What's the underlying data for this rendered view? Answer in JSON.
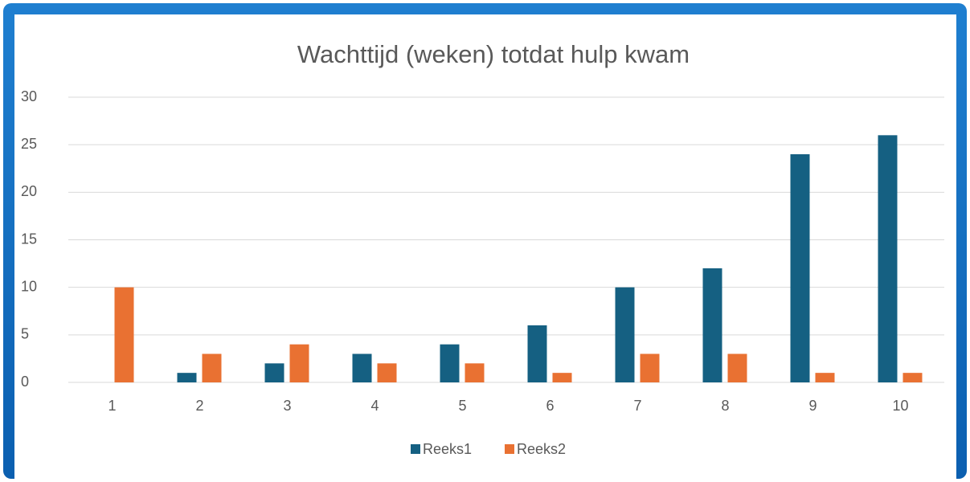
{
  "chart_data": {
    "type": "bar",
    "title": "Wachttijd (weken) totdat hulp kwam",
    "categories": [
      "1",
      "2",
      "3",
      "4",
      "5",
      "6",
      "7",
      "8",
      "9",
      "10"
    ],
    "series": [
      {
        "name": "Reeks1",
        "color": "#156082",
        "values": [
          0,
          1,
          2,
          3,
          4,
          6,
          10,
          12,
          24,
          26
        ]
      },
      {
        "name": "Reeks2",
        "color": "#e97132",
        "values": [
          10,
          3,
          4,
          2,
          2,
          1,
          3,
          3,
          1,
          1
        ]
      }
    ],
    "ylim": [
      0,
      30
    ],
    "yticks": [
      0,
      5,
      10,
      15,
      20,
      25,
      30
    ],
    "grid": true,
    "legend": "bottom"
  }
}
